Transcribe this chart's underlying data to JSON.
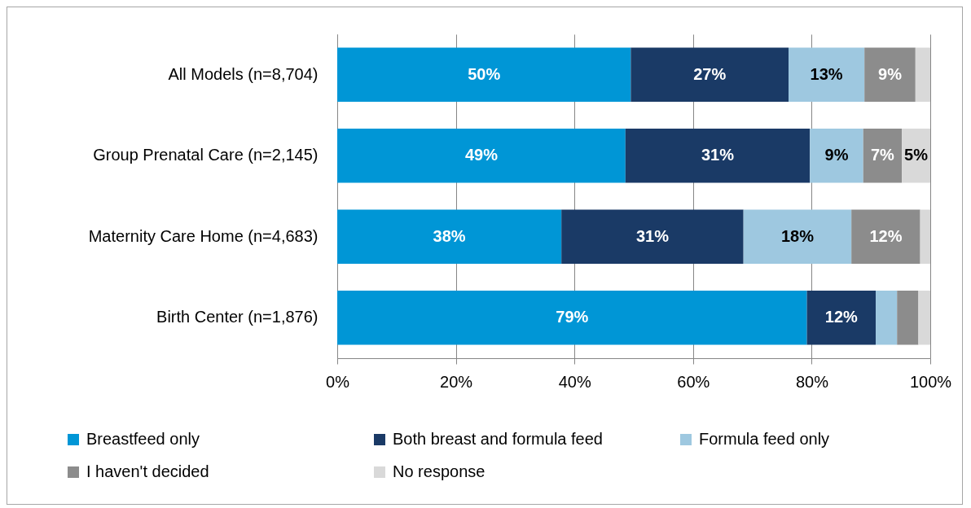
{
  "chart_data": {
    "type": "bar",
    "orientation": "horizontal",
    "stacked": true,
    "categories": [
      "All Models (n=8,704)",
      "Group Prenatal Care (n=2,145)",
      "Maternity Care Home (n=4,683)",
      "Birth Center (n=1,876)"
    ],
    "series": [
      {
        "name": "Breastfeed only",
        "color": "#0096d6",
        "values": [
          49.5,
          48.6,
          37.8,
          79.2
        ],
        "value_labels": [
          "50%",
          "49%",
          "38%",
          "79%"
        ]
      },
      {
        "name": "Both breast and formula feed",
        "color": "#1a3a66",
        "values": [
          26.6,
          31.1,
          30.7,
          11.6
        ],
        "value_labels": [
          "27%",
          "31%",
          "31%",
          "12%"
        ]
      },
      {
        "name": "Formula feed only",
        "color": "#9ec8e0",
        "values": [
          12.8,
          9.0,
          18.2,
          3.6
        ],
        "value_labels": [
          "13%",
          "9%",
          "18%",
          null
        ]
      },
      {
        "name": "I haven't decided",
        "color": "#8c8c8c",
        "values": [
          8.6,
          6.5,
          11.6,
          3.6
        ],
        "value_labels": [
          "9%",
          "7%",
          "12%",
          null
        ]
      },
      {
        "name": "No response",
        "color": "#d9d9d9",
        "values": [
          2.5,
          4.8,
          1.7,
          2.0
        ],
        "value_labels": [
          null,
          "5%",
          null,
          null
        ]
      }
    ],
    "xlim": [
      0,
      100
    ],
    "xticks": [
      {
        "value": 0,
        "label": "0%"
      },
      {
        "value": 20,
        "label": "20%"
      },
      {
        "value": 40,
        "label": "40%"
      },
      {
        "value": 60,
        "label": "60%"
      },
      {
        "value": 80,
        "label": "80%"
      },
      {
        "value": 100,
        "label": "100%"
      }
    ],
    "grid": "x",
    "legend": "bottom"
  }
}
